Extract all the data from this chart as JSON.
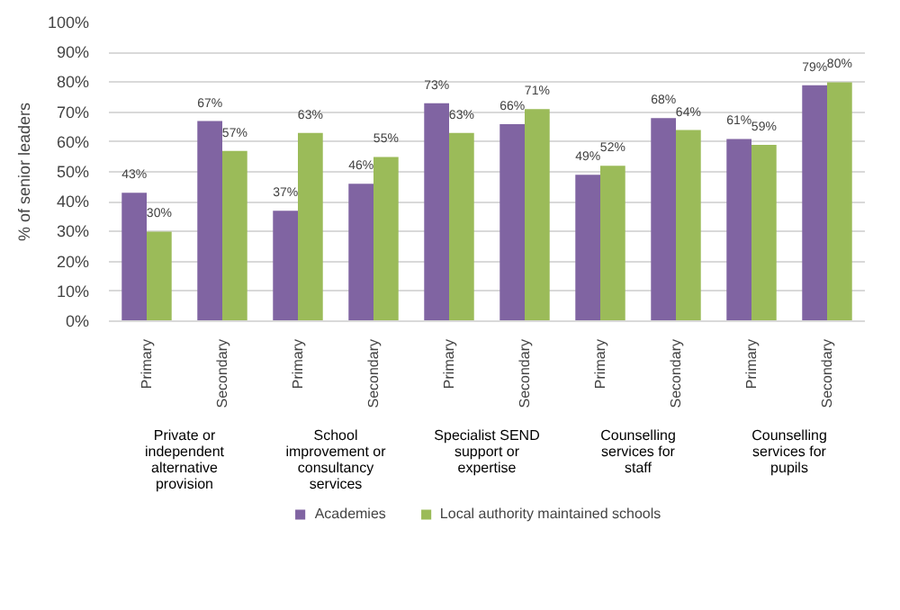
{
  "chart_data": {
    "type": "bar",
    "ylabel": "% of senior leaders",
    "categories": [
      "Primary",
      "Secondary",
      "Primary",
      "Secondary",
      "Primary",
      "Secondary",
      "Primary",
      "Secondary",
      "Primary",
      "Secondary"
    ],
    "annotations": [
      "Private or independent alternative provision",
      "School improvement or consultancy services",
      "Specialist SEND support or expertise",
      "Counselling services for staff",
      "Counselling services for pupils"
    ],
    "series": [
      {
        "name": "Academies",
        "color": "#8064a2",
        "values": [
          43,
          67,
          37,
          46,
          73,
          66,
          49,
          68,
          61,
          79
        ],
        "value_labels": [
          "43%",
          "67%",
          "37%",
          "46%",
          "73%",
          "66%",
          "49%",
          "68%",
          "61%",
          "79%"
        ]
      },
      {
        "name": "Local authority maintained schools",
        "color": "#9bbb59",
        "values": [
          30,
          57,
          63,
          55,
          63,
          71,
          52,
          64,
          59,
          80
        ],
        "value_labels": [
          "30%",
          "57%",
          "63%",
          "55%",
          "63%",
          "71%",
          "52%",
          "64%",
          "59%",
          "80%"
        ]
      }
    ],
    "ylim": [
      0,
      100
    ],
    "yticks": [
      {
        "value": 0,
        "label": "0%"
      },
      {
        "value": 10,
        "label": "10%"
      },
      {
        "value": 20,
        "label": "20%"
      },
      {
        "value": 30,
        "label": "30%"
      },
      {
        "value": 40,
        "label": "40%"
      },
      {
        "value": 50,
        "label": "50%"
      },
      {
        "value": 60,
        "label": "60%"
      },
      {
        "value": 70,
        "label": "70%"
      },
      {
        "value": 80,
        "label": "80%"
      },
      {
        "value": 90,
        "label": "90%"
      },
      {
        "value": 100,
        "label": "100%"
      }
    ],
    "grid": "y",
    "legend": "bottom"
  }
}
